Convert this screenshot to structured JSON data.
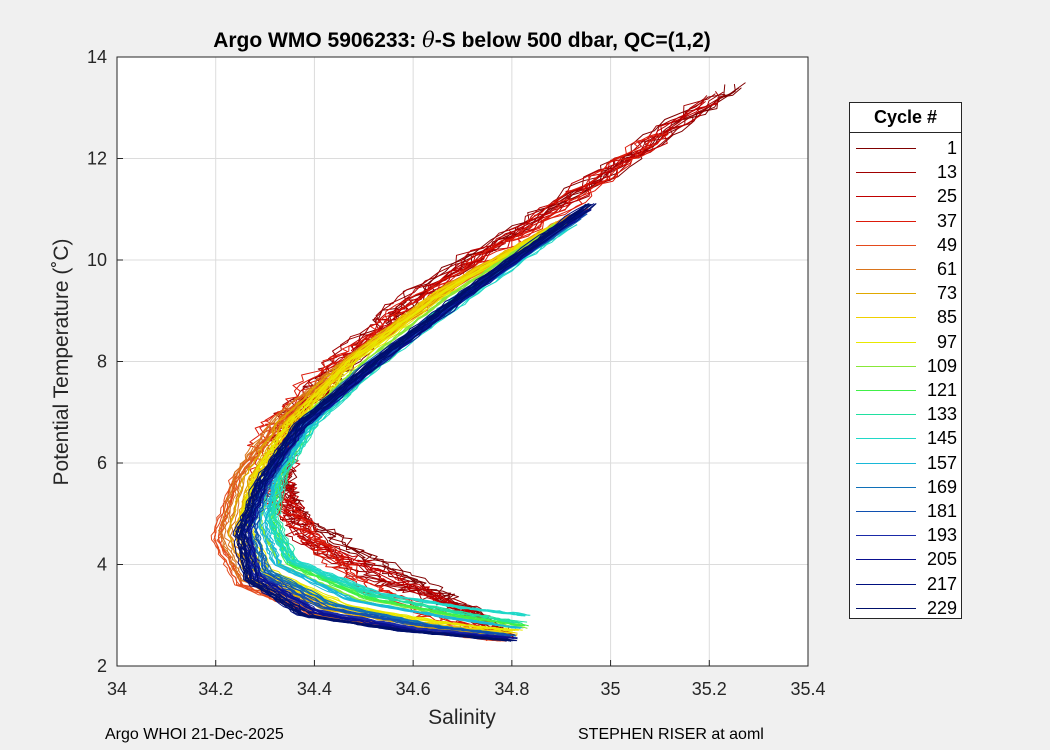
{
  "chart_data": {
    "type": "line",
    "title_parts": {
      "prefix": "Argo WMO 5906233: ",
      "theta": "θ",
      "suffix": "-S below 500 dbar,  QC=(1,2)"
    },
    "xlabel": "Salinity",
    "ylabel": "Potential Temperature (˚C)",
    "xlim": [
      34,
      35.4
    ],
    "ylim": [
      2,
      14
    ],
    "xticks": [
      "34",
      "34.2",
      "34.4",
      "34.6",
      "34.8",
      "35",
      "35.2",
      "35.4"
    ],
    "yticks": [
      "2",
      "4",
      "6",
      "8",
      "10",
      "12",
      "14"
    ],
    "grid": true,
    "legend_title": "Cycle #",
    "legend_position": "outside-right",
    "series": [
      {
        "name": "1",
        "color": "#800000",
        "spine_points": [
          [
            35.25,
            13.45
          ],
          [
            34.95,
            11.5
          ],
          [
            34.62,
            9.5
          ],
          [
            34.48,
            8.2
          ],
          [
            34.35,
            7.0
          ],
          [
            34.32,
            6.0
          ],
          [
            34.35,
            5.0
          ],
          [
            34.48,
            4.2
          ],
          [
            34.65,
            3.4
          ],
          [
            34.78,
            2.6
          ]
        ]
      },
      {
        "name": "13",
        "color": "#a00000",
        "spine_points": [
          [
            35.22,
            13.3
          ],
          [
            34.95,
            11.4
          ],
          [
            34.6,
            9.3
          ],
          [
            34.45,
            8.0
          ],
          [
            34.34,
            6.8
          ],
          [
            34.33,
            5.5
          ],
          [
            34.38,
            4.5
          ],
          [
            34.5,
            3.8
          ],
          [
            34.7,
            3.2
          ],
          [
            34.78,
            2.6
          ]
        ]
      },
      {
        "name": "25",
        "color": "#c00000",
        "spine_points": [
          [
            35.2,
            13.1
          ],
          [
            34.9,
            11.1
          ],
          [
            34.6,
            9.2
          ],
          [
            34.45,
            7.9
          ],
          [
            34.35,
            6.6
          ],
          [
            34.34,
            5.4
          ],
          [
            34.4,
            4.4
          ],
          [
            34.55,
            3.8
          ],
          [
            34.7,
            3.1
          ],
          [
            34.78,
            2.6
          ]
        ]
      },
      {
        "name": "37",
        "color": "#dd1a0a",
        "spine_points": [
          [
            35.1,
            12.5
          ],
          [
            34.9,
            11.0
          ],
          [
            34.6,
            9.1
          ],
          [
            34.42,
            7.8
          ],
          [
            34.3,
            6.6
          ],
          [
            34.3,
            5.5
          ],
          [
            34.4,
            4.5
          ],
          [
            34.5,
            3.6
          ],
          [
            34.65,
            3.0
          ],
          [
            34.78,
            2.55
          ]
        ]
      },
      {
        "name": "49",
        "color": "#e44a1c",
        "spine_points": [
          [
            34.95,
            11.0
          ],
          [
            34.7,
            9.6
          ],
          [
            34.5,
            8.2
          ],
          [
            34.34,
            6.9
          ],
          [
            34.24,
            5.7
          ],
          [
            34.2,
            4.5
          ],
          [
            34.25,
            3.6
          ],
          [
            34.4,
            3.0
          ],
          [
            34.6,
            2.7
          ],
          [
            34.78,
            2.5
          ]
        ]
      },
      {
        "name": "61",
        "color": "#d9741c",
        "spine_points": [
          [
            34.93,
            10.9
          ],
          [
            34.68,
            9.5
          ],
          [
            34.48,
            8.1
          ],
          [
            34.33,
            6.9
          ],
          [
            34.25,
            5.8
          ],
          [
            34.22,
            4.6
          ],
          [
            34.26,
            3.7
          ],
          [
            34.42,
            3.0
          ],
          [
            34.62,
            2.7
          ],
          [
            34.78,
            2.55
          ]
        ]
      },
      {
        "name": "73",
        "color": "#e0a800",
        "spine_points": [
          [
            34.92,
            10.8
          ],
          [
            34.66,
            9.4
          ],
          [
            34.47,
            8.0
          ],
          [
            34.34,
            6.8
          ],
          [
            34.27,
            5.7
          ],
          [
            34.24,
            4.6
          ],
          [
            34.28,
            3.7
          ],
          [
            34.44,
            3.1
          ],
          [
            34.64,
            2.75
          ],
          [
            34.8,
            2.6
          ]
        ]
      },
      {
        "name": "85",
        "color": "#f0d000",
        "spine_points": [
          [
            34.9,
            10.75
          ],
          [
            34.65,
            9.35
          ],
          [
            34.47,
            8.0
          ],
          [
            34.35,
            6.8
          ],
          [
            34.28,
            5.7
          ],
          [
            34.25,
            4.7
          ],
          [
            34.29,
            3.8
          ],
          [
            34.45,
            3.15
          ],
          [
            34.65,
            2.8
          ],
          [
            34.8,
            2.65
          ]
        ]
      },
      {
        "name": "97",
        "color": "#e8e800",
        "spine_points": [
          [
            34.9,
            10.7
          ],
          [
            34.66,
            9.3
          ],
          [
            34.48,
            8.0
          ],
          [
            34.36,
            6.8
          ],
          [
            34.29,
            5.8
          ],
          [
            34.26,
            4.8
          ],
          [
            34.3,
            3.9
          ],
          [
            34.46,
            3.2
          ],
          [
            34.66,
            2.85
          ],
          [
            34.81,
            2.7
          ]
        ]
      },
      {
        "name": "109",
        "color": "#88e838",
        "spine_points": [
          [
            34.9,
            10.7
          ],
          [
            34.67,
            9.2
          ],
          [
            34.5,
            7.9
          ],
          [
            34.38,
            6.8
          ],
          [
            34.32,
            5.8
          ],
          [
            34.3,
            4.8
          ],
          [
            34.34,
            4.0
          ],
          [
            34.5,
            3.3
          ],
          [
            34.68,
            2.95
          ],
          [
            34.82,
            2.75
          ]
        ]
      },
      {
        "name": "121",
        "color": "#40f048",
        "spine_points": [
          [
            34.9,
            10.65
          ],
          [
            34.68,
            9.2
          ],
          [
            34.51,
            7.9
          ],
          [
            34.39,
            6.8
          ],
          [
            34.33,
            5.8
          ],
          [
            34.31,
            4.9
          ],
          [
            34.35,
            4.0
          ],
          [
            34.5,
            3.35
          ],
          [
            34.68,
            3.0
          ],
          [
            34.82,
            2.8
          ]
        ]
      },
      {
        "name": "133",
        "color": "#20e0a0",
        "spine_points": [
          [
            34.9,
            10.6
          ],
          [
            34.68,
            9.15
          ],
          [
            34.52,
            7.85
          ],
          [
            34.4,
            6.8
          ],
          [
            34.34,
            5.8
          ],
          [
            34.32,
            4.9
          ],
          [
            34.36,
            4.05
          ],
          [
            34.52,
            3.4
          ],
          [
            34.7,
            3.05
          ],
          [
            34.82,
            2.85
          ]
        ]
      },
      {
        "name": "145",
        "color": "#20d8c8",
        "spine_points": [
          [
            34.92,
            10.7
          ],
          [
            34.7,
            9.2
          ],
          [
            34.52,
            7.9
          ],
          [
            34.4,
            6.8
          ],
          [
            34.33,
            5.8
          ],
          [
            34.31,
            4.9
          ],
          [
            34.35,
            4.1
          ],
          [
            34.52,
            3.45
          ],
          [
            34.7,
            3.15
          ],
          [
            34.83,
            3.0
          ]
        ]
      },
      {
        "name": "157",
        "color": "#18b8d8",
        "spine_points": [
          [
            34.92,
            10.7
          ],
          [
            34.7,
            9.2
          ],
          [
            34.52,
            7.9
          ],
          [
            34.39,
            6.7
          ],
          [
            34.32,
            5.7
          ],
          [
            34.3,
            4.8
          ],
          [
            34.33,
            4.0
          ],
          [
            34.48,
            3.3
          ],
          [
            34.68,
            2.95
          ],
          [
            34.82,
            2.75
          ]
        ]
      },
      {
        "name": "169",
        "color": "#1070b8",
        "spine_points": [
          [
            34.93,
            10.8
          ],
          [
            34.7,
            9.3
          ],
          [
            34.52,
            8.0
          ],
          [
            34.38,
            6.8
          ],
          [
            34.3,
            5.7
          ],
          [
            34.27,
            4.8
          ],
          [
            34.3,
            3.9
          ],
          [
            34.44,
            3.2
          ],
          [
            34.64,
            2.8
          ],
          [
            34.8,
            2.6
          ]
        ]
      },
      {
        "name": "181",
        "color": "#1050b0",
        "spine_points": [
          [
            34.94,
            10.9
          ],
          [
            34.71,
            9.35
          ],
          [
            34.53,
            8.0
          ],
          [
            34.38,
            6.8
          ],
          [
            34.3,
            5.6
          ],
          [
            34.27,
            4.7
          ],
          [
            34.29,
            3.85
          ],
          [
            34.42,
            3.15
          ],
          [
            34.62,
            2.8
          ],
          [
            34.8,
            2.6
          ]
        ]
      },
      {
        "name": "193",
        "color": "#1a2aa8",
        "spine_points": [
          [
            34.95,
            11.0
          ],
          [
            34.72,
            9.4
          ],
          [
            34.53,
            8.05
          ],
          [
            34.38,
            6.8
          ],
          [
            34.3,
            5.6
          ],
          [
            34.26,
            4.7
          ],
          [
            34.28,
            3.8
          ],
          [
            34.4,
            3.1
          ],
          [
            34.6,
            2.75
          ],
          [
            34.8,
            2.55
          ]
        ]
      },
      {
        "name": "205",
        "color": "#0a1090",
        "spine_points": [
          [
            34.95,
            11.0
          ],
          [
            34.72,
            9.4
          ],
          [
            34.53,
            8.0
          ],
          [
            34.37,
            6.7
          ],
          [
            34.29,
            5.6
          ],
          [
            34.26,
            4.6
          ],
          [
            34.28,
            3.75
          ],
          [
            34.4,
            3.05
          ],
          [
            34.6,
            2.7
          ],
          [
            34.8,
            2.55
          ]
        ]
      },
      {
        "name": "217",
        "color": "#001080",
        "spine_points": [
          [
            34.96,
            11.1
          ],
          [
            34.72,
            9.45
          ],
          [
            34.53,
            8.05
          ],
          [
            34.37,
            6.75
          ],
          [
            34.29,
            5.6
          ],
          [
            34.25,
            4.6
          ],
          [
            34.27,
            3.7
          ],
          [
            34.38,
            3.0
          ],
          [
            34.58,
            2.7
          ],
          [
            34.8,
            2.5
          ]
        ]
      },
      {
        "name": "229",
        "color": "#00106a",
        "spine_points": [
          [
            34.96,
            11.1
          ],
          [
            34.72,
            9.45
          ],
          [
            34.53,
            8.05
          ],
          [
            34.37,
            6.75
          ],
          [
            34.29,
            5.6
          ],
          [
            34.25,
            4.6
          ],
          [
            34.27,
            3.7
          ],
          [
            34.38,
            3.0
          ],
          [
            34.58,
            2.7
          ],
          [
            34.8,
            2.5
          ]
        ]
      }
    ]
  },
  "footer": {
    "left": "Argo WHOI 21-Dec-2025",
    "right": "STEPHEN RISER at aoml"
  }
}
